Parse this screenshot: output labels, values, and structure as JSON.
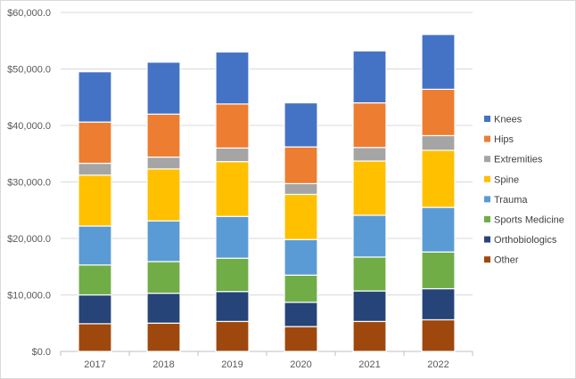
{
  "chart_data": {
    "type": "bar",
    "stacked": true,
    "title": "",
    "xlabel": "",
    "ylabel": "",
    "categories": [
      "2017",
      "2018",
      "2019",
      "2020",
      "2021",
      "2022"
    ],
    "ylim": [
      0,
      60000
    ],
    "yticks": [
      {
        "value": 0,
        "label": "$0.0"
      },
      {
        "value": 10000,
        "label": "$10,000.0"
      },
      {
        "value": 20000,
        "label": "$20,000.0"
      },
      {
        "value": 30000,
        "label": "$30,000.0"
      },
      {
        "value": 40000,
        "label": "$40,000.0"
      },
      {
        "value": 50000,
        "label": "$50,000.0"
      },
      {
        "value": 60000,
        "label": "$60,000.0"
      }
    ],
    "grid": true,
    "legend_position": "right",
    "series": [
      {
        "name": "Other",
        "color": "#9E480E",
        "values": [
          4900,
          5000,
          5300,
          4400,
          5300,
          5600
        ]
      },
      {
        "name": "Orthobiologics",
        "color": "#264478",
        "values": [
          5100,
          5300,
          5300,
          4300,
          5400,
          5500
        ]
      },
      {
        "name": "Sports Medicine",
        "color": "#70AD47",
        "values": [
          5300,
          5600,
          5900,
          4800,
          6000,
          6500
        ]
      },
      {
        "name": "Trauma",
        "color": "#5B9BD5",
        "values": [
          6900,
          7200,
          7400,
          6300,
          7400,
          7900
        ]
      },
      {
        "name": "Spine",
        "color": "#FFC000",
        "values": [
          9000,
          9200,
          9700,
          8000,
          9600,
          10100
        ]
      },
      {
        "name": "Extremities",
        "color": "#A5A5A5",
        "values": [
          2100,
          2100,
          2400,
          1900,
          2400,
          2600
        ]
      },
      {
        "name": "Hips",
        "color": "#ED7D31",
        "values": [
          7300,
          7600,
          7800,
          6500,
          7900,
          8200
        ]
      },
      {
        "name": "Knees",
        "color": "#4472C4",
        "values": [
          8900,
          9200,
          9200,
          7800,
          9200,
          9700
        ]
      }
    ],
    "legend_order": [
      "Knees",
      "Hips",
      "Extremities",
      "Spine",
      "Trauma",
      "Sports Medicine",
      "Orthobiologics",
      "Other"
    ]
  }
}
